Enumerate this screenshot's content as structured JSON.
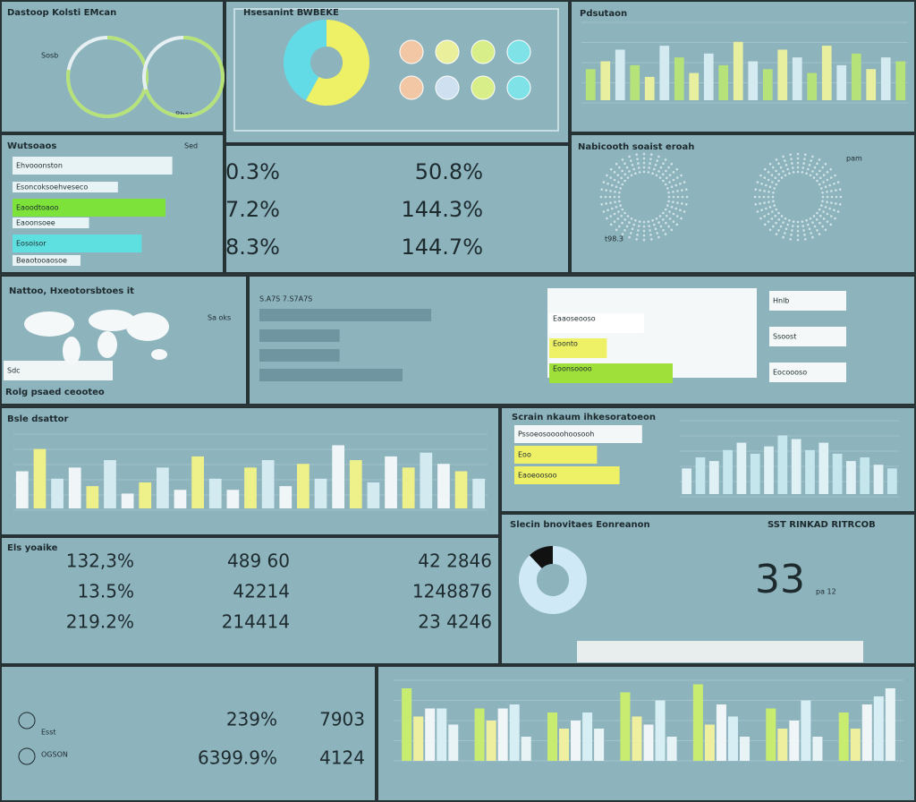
{
  "gauges": {
    "title": "Dastoop Kolsti EMcan",
    "label": "Sosb",
    "footer": "Bhas",
    "values": [
      78,
      70
    ],
    "lim": [
      0,
      100
    ],
    "color": "#b6e27a"
  },
  "pie": {
    "title": "Hsesanint BWBEKE",
    "values": [
      58,
      42
    ],
    "colors": [
      "#eef066",
      "#62dbe6"
    ],
    "dots": [
      "#f1c7a6",
      "#e9ef9a",
      "#d8ee88",
      "#7fe2e6",
      "#f1c7a6",
      "#cfe0f0",
      "#d8ee88",
      "#7fe2e6"
    ]
  },
  "bars_top": {
    "title": "Pdsutaon",
    "values": [
      40,
      50,
      65,
      45,
      30,
      70,
      55,
      35,
      60,
      45,
      75,
      50,
      40,
      65,
      55,
      35,
      70,
      45,
      60,
      40,
      55,
      50
    ],
    "colors": [
      "#b6e27a",
      "#e8f0a0",
      "#d2eaf0"
    ],
    "ylim": [
      0,
      100
    ]
  },
  "hbars": {
    "title": "Wutsoaos",
    "label": "Sed",
    "items": [
      {
        "label": "Ehvooonston",
        "value": 94,
        "color": "#e8f3f6"
      },
      {
        "label": "Esoncoksoehveseco",
        "value": 62,
        "color": "#e8f3f6"
      },
      {
        "label": "Eaoodtoaoo",
        "value": 90,
        "color": "#7de23a"
      },
      {
        "label": "Eaoonsoee",
        "value": 45,
        "color": "#e8f3f6"
      },
      {
        "label": "Eosoisor",
        "value": 76,
        "color": "#5fe0e0"
      },
      {
        "label": "Beaotooaosoe",
        "value": 40,
        "color": "#e8f3f6"
      }
    ],
    "lim": [
      0,
      100
    ]
  },
  "kpis": [
    "0.3%",
    "50.8%",
    "7.2%",
    "144.3%",
    "8.3%",
    "144.7%"
  ],
  "donuts": {
    "title": "Nabicooth soaist eroah",
    "label": "pam",
    "sublabel": "t98.3"
  },
  "map": {
    "title": "Nattoo, Hxeotorsbtoes it",
    "label": "Sa oks",
    "input": "Sdc",
    "footer": "Rolg psaed ceooteo"
  },
  "mixed": {
    "label": "S.A7S 7.S7A7S",
    "values": [
      60,
      28,
      28,
      50
    ],
    "lim": [
      0,
      100
    ],
    "right": [
      {
        "label": "Eaaoseooso",
        "value": 46,
        "color": "#ffffff"
      },
      {
        "label": "Eoonto",
        "value": 28,
        "color": "#eef066"
      },
      {
        "label": "Eoonsoooo",
        "value": 60,
        "color": "#9fe03a"
      }
    ],
    "boxes": [
      "Hnlb",
      "Ssoost",
      "Eocoooso"
    ]
  },
  "bars_mid": {
    "title": "Bsle dsattor",
    "values": [
      50,
      80,
      40,
      55,
      30,
      65,
      20,
      35,
      55,
      25,
      70,
      40,
      25,
      55,
      65,
      30,
      60,
      40,
      85,
      65,
      35,
      70,
      55,
      75,
      60,
      50,
      40
    ],
    "colors": [
      "#f0f5f7",
      "#eef08a",
      "#d2eaf0"
    ],
    "ylim": [
      0,
      100
    ]
  },
  "scrain": {
    "title": "Scrain nkaum ihkesoratoeon",
    "items": [
      {
        "label": "Pssoeosoooohoosooh",
        "value": 68,
        "color": "#f4f7f8"
      },
      {
        "label": "Eoo",
        "value": 44,
        "color": "#eef066"
      },
      {
        "label": "Eaoeoosoo",
        "value": 56,
        "color": "#eef066"
      }
    ],
    "lim": [
      0,
      100
    ],
    "values": [
      35,
      50,
      45,
      60,
      70,
      55,
      65,
      80,
      75,
      60,
      70,
      55,
      45,
      50,
      40,
      35
    ],
    "ylim": [
      0,
      100
    ]
  },
  "table": {
    "title": "Els yoaike",
    "rows": [
      [
        "132,3%",
        "489 60",
        "42 2846"
      ],
      [
        "13.5%",
        "42214",
        "1248876"
      ],
      [
        "219.2%",
        "214414",
        "23 4246"
      ]
    ]
  },
  "gauge2": {
    "title": "Slecin bnovitaes Eonreanon",
    "title2": "SST RINKAD RITRCOB",
    "value": 33,
    "sublabel": "pa 12",
    "values": [
      88,
      12
    ],
    "colors": [
      "#cfeaf6",
      "#111111"
    ]
  },
  "kpis2": {
    "labels": [
      "Esst",
      "OGSON"
    ],
    "rows": [
      [
        "239%",
        "7903"
      ],
      [
        "6399.9%",
        "4124"
      ]
    ]
  },
  "bars_bottom": {
    "groups": [
      [
        90,
        55,
        65,
        65,
        45
      ],
      [
        65,
        50,
        65,
        70,
        30
      ],
      [
        60,
        40,
        50,
        60,
        40
      ],
      [
        85,
        55,
        45,
        75,
        30
      ],
      [
        95,
        45,
        70,
        55,
        30
      ],
      [
        65,
        40,
        50,
        75,
        30
      ],
      [
        60,
        40,
        70,
        80,
        90
      ]
    ],
    "colors": [
      "#c8ec70",
      "#eef0a0",
      "#f0f5f7",
      "#d6eef4",
      "#e8f3f6"
    ],
    "ylim": [
      0,
      100
    ]
  }
}
